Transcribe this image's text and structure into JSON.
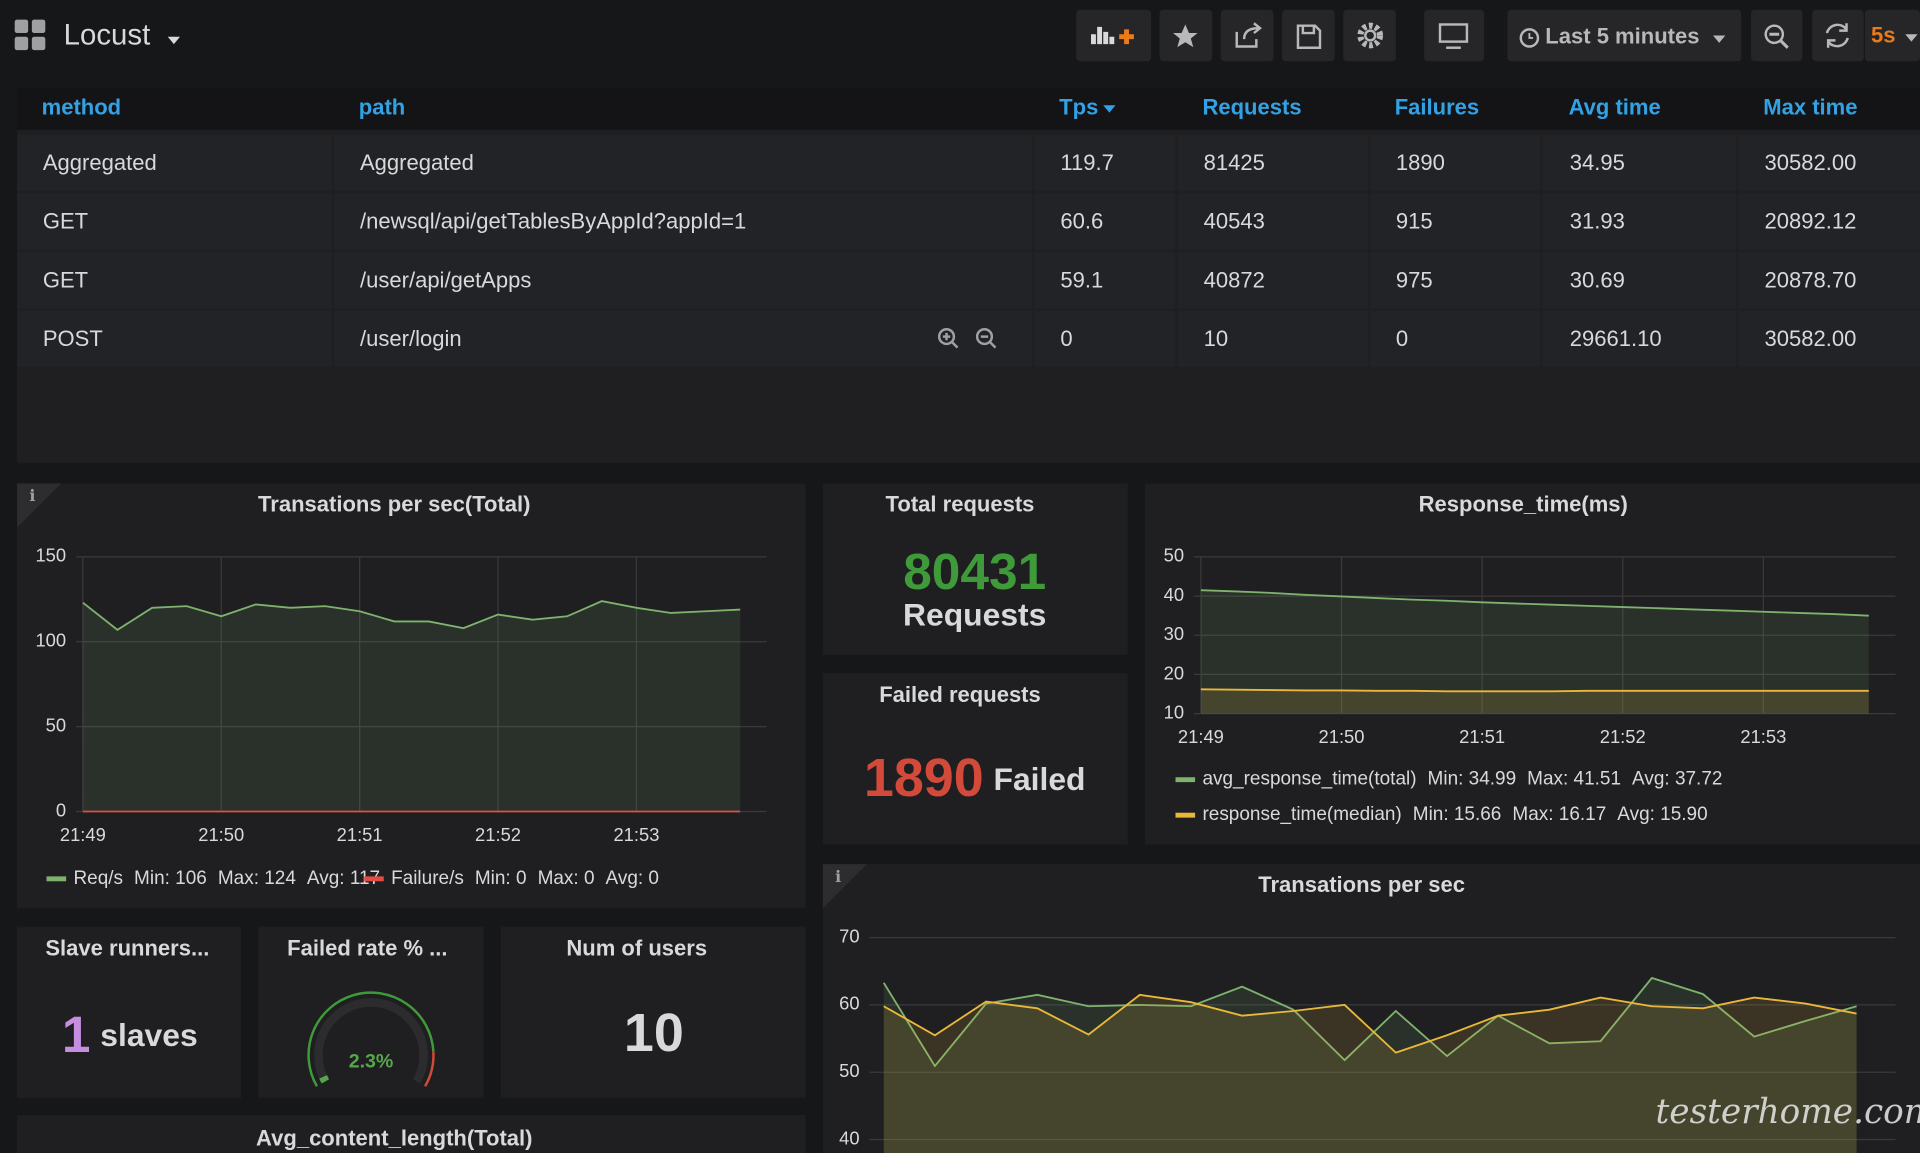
{
  "header": {
    "title": "Locust",
    "time_range": "Last 5 minutes",
    "refresh": "5s"
  },
  "table": {
    "columns": [
      "method",
      "path",
      "Tps",
      "Requests",
      "Failures",
      "Avg time",
      "Max time"
    ],
    "rows": [
      [
        "Aggregated",
        "Aggregated",
        "119.7",
        "81425",
        "1890",
        "34.95",
        "30582.00"
      ],
      [
        "GET",
        "/newsql/api/getTablesByAppId?appId=1",
        "60.6",
        "40543",
        "915",
        "31.93",
        "20892.12"
      ],
      [
        "GET",
        "/user/api/getApps",
        "59.1",
        "40872",
        "975",
        "30.69",
        "20878.70"
      ],
      [
        "POST",
        "/user/login",
        "0",
        "10",
        "0",
        "29661.10",
        "30582.00"
      ]
    ]
  },
  "panels": {
    "tps_total": {
      "type": "line",
      "title": "Transations per sec(Total)",
      "x": [
        0,
        0.25,
        0.5,
        0.75,
        1,
        1.25,
        1.5,
        1.75,
        2,
        2.25,
        2.5,
        2.75,
        3,
        3.25,
        3.5,
        3.75,
        4,
        4.25,
        4.5,
        4.75
      ],
      "xlim": [
        -0.05,
        4.94
      ],
      "xticks": [
        {
          "value": 0,
          "label": "21:49"
        },
        {
          "value": 1,
          "label": "21:50"
        },
        {
          "value": 2,
          "label": "21:51"
        },
        {
          "value": 3,
          "label": "21:52"
        },
        {
          "value": 4,
          "label": "21:53"
        }
      ],
      "ylim": [
        0,
        150
      ],
      "yticks": [
        0,
        50,
        100,
        150
      ],
      "grid": true,
      "series": [
        {
          "name": "Req/s",
          "color": "#7eb26d",
          "stats": [
            "Min: 106",
            "Max: 124",
            "Avg: 117"
          ],
          "values": [
            123,
            107,
            120,
            121,
            115,
            122,
            120,
            121,
            118,
            112,
            112,
            108,
            116,
            113,
            115,
            124,
            120,
            117,
            118,
            119
          ]
        },
        {
          "name": "Failure/s",
          "color": "#e24d42",
          "stats": [
            "Min: 0",
            "Max: 0",
            "Avg: 0"
          ],
          "values": [
            0,
            0,
            0,
            0,
            0,
            0,
            0,
            0,
            0,
            0,
            0,
            0,
            0,
            0,
            0,
            0,
            0,
            0,
            0,
            0
          ]
        }
      ]
    },
    "response_time": {
      "type": "line",
      "title": "Response_time(ms)",
      "x": [
        0,
        0.25,
        0.5,
        0.75,
        1,
        1.25,
        1.5,
        1.75,
        2,
        2.25,
        2.5,
        2.75,
        3,
        3.25,
        3.5,
        3.75,
        4,
        4.25,
        4.5,
        4.75
      ],
      "xlim": [
        -0.05,
        4.94
      ],
      "xticks": [
        {
          "value": 0,
          "label": "21:49"
        },
        {
          "value": 1,
          "label": "21:50"
        },
        {
          "value": 2,
          "label": "21:51"
        },
        {
          "value": 3,
          "label": "21:52"
        },
        {
          "value": 4,
          "label": "21:53"
        }
      ],
      "ylim": [
        10,
        50
      ],
      "yticks": [
        10,
        20,
        30,
        40,
        50
      ],
      "grid": true,
      "series": [
        {
          "name": "avg_response_time(total)",
          "color": "#7eb26d",
          "stats": [
            "Min: 34.99",
            "Max: 41.51",
            "Avg: 37.72"
          ],
          "values": [
            41.5,
            41.2,
            40.8,
            40.3,
            39.9,
            39.5,
            39.1,
            38.8,
            38.4,
            38.1,
            37.8,
            37.5,
            37.2,
            36.9,
            36.6,
            36.3,
            36.0,
            35.7,
            35.4,
            35.0
          ]
        },
        {
          "name": "response_time(median)",
          "color": "#eab839",
          "stats": [
            "Min: 15.66",
            "Max: 16.17",
            "Avg: 15.90"
          ],
          "values": [
            16.2,
            16.1,
            16.0,
            15.9,
            15.9,
            15.8,
            15.8,
            15.7,
            15.7,
            15.7,
            15.7,
            15.8,
            15.8,
            15.8,
            15.8,
            15.8,
            15.8,
            15.8,
            15.8,
            15.8
          ]
        }
      ]
    },
    "tps": {
      "type": "line",
      "title": "Transations per sec",
      "x": [
        0,
        0.25,
        0.5,
        0.75,
        1,
        1.25,
        1.5,
        1.75,
        2,
        2.25,
        2.5,
        2.75,
        3,
        3.25,
        3.5,
        3.75,
        4,
        4.25,
        4.5,
        4.75
      ],
      "xlim": [
        -0.07,
        4.94
      ],
      "ylim": [
        38,
        70
      ],
      "yticks": [
        40,
        50,
        60,
        70
      ],
      "grid": true,
      "series": [
        {
          "name": "",
          "color": "#7eb26d",
          "values": [
            63.3,
            50.9,
            60.2,
            61.5,
            59.8,
            60,
            59.8,
            62.7,
            59.3,
            51.8,
            59.1,
            52.4,
            58.4,
            54.3,
            54.6,
            64,
            61.6,
            55.3,
            57.6,
            59.8
          ]
        },
        {
          "name": "",
          "color": "#eab839",
          "values": [
            59.8,
            55.5,
            60.5,
            59.5,
            55.6,
            61.5,
            60.4,
            58.4,
            59.1,
            60,
            52.9,
            55.5,
            58.4,
            59.3,
            61.1,
            59.8,
            59.5,
            61.1,
            60.2,
            58.7
          ]
        }
      ]
    }
  },
  "stats": {
    "total_requests": {
      "title": "Total requests",
      "value": "80431",
      "unit": "Requests"
    },
    "failed_requests": {
      "title": "Failed requests",
      "value": "1890",
      "unit": "Failed"
    },
    "slave_runners": {
      "title": "Slave runners...",
      "value": "1",
      "unit": "slaves"
    },
    "num_users": {
      "title": "Num of users",
      "value": "10"
    }
  },
  "gauge": {
    "title": "Failed rate % ...",
    "value": 2.3,
    "value_label": "2.3%",
    "range": [
      0,
      100
    ]
  },
  "avg_content_length": {
    "title": "Avg_content_length(Total)"
  },
  "watermark": "testerhome.com"
}
